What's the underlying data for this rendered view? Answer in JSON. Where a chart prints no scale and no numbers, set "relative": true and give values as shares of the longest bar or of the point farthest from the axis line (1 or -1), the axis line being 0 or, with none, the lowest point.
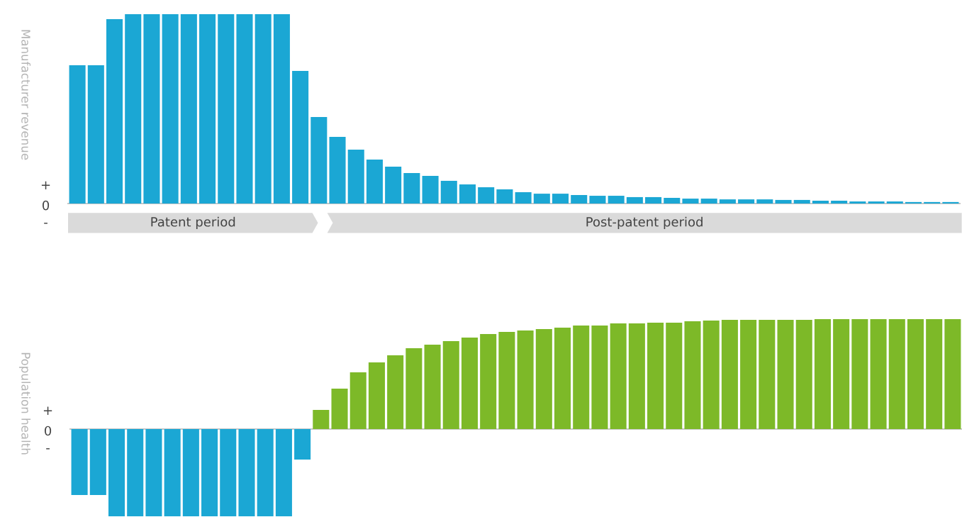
{
  "chart_data": [
    {
      "type": "bar",
      "relative": true,
      "ylabel": "Manufacturer revenue",
      "categories": [
        null,
        null,
        null,
        null,
        null,
        null,
        null,
        null,
        null,
        null,
        null,
        null,
        null,
        null,
        null,
        null,
        null,
        null,
        null,
        null,
        null,
        null,
        null,
        null,
        null,
        null,
        null,
        null,
        null,
        null,
        null,
        null,
        null,
        null,
        null,
        null,
        null,
        null,
        null,
        null,
        null,
        null,
        null,
        null,
        null,
        null,
        null,
        null
      ],
      "values": [
        0.73,
        0.73,
        0.974,
        1,
        1,
        1,
        1,
        1,
        1,
        1,
        1,
        1,
        0.7,
        0.457,
        0.352,
        0.285,
        0.232,
        0.195,
        0.161,
        0.146,
        0.12,
        0.101,
        0.086,
        0.075,
        0.06,
        0.052,
        0.052,
        0.045,
        0.041,
        0.041,
        0.034,
        0.034,
        0.03,
        0.026,
        0.026,
        0.022,
        0.022,
        0.022,
        0.019,
        0.019,
        0.015,
        0.015,
        0.011,
        0.011,
        0.011,
        0.008,
        0.008,
        0.008
      ],
      "color": "#1ba7d4",
      "annotations": [
        "+",
        "0",
        "-",
        "Patent period",
        "Post-patent period"
      ]
    },
    {
      "type": "bar",
      "relative": true,
      "ylabel": "Population health",
      "categories": [
        null,
        null,
        null,
        null,
        null,
        null,
        null,
        null,
        null,
        null,
        null,
        null,
        null,
        null,
        null,
        null,
        null,
        null,
        null,
        null,
        null,
        null,
        null,
        null,
        null,
        null,
        null,
        null,
        null,
        null,
        null,
        null,
        null,
        null,
        null,
        null,
        null,
        null,
        null,
        null,
        null,
        null,
        null,
        null,
        null,
        null,
        null,
        null
      ],
      "values": [
        -0.6,
        -0.6,
        -0.794,
        -0.794,
        -0.794,
        -0.794,
        -0.794,
        -0.794,
        -0.794,
        -0.794,
        -0.794,
        -0.794,
        -0.277,
        0.174,
        0.368,
        0.516,
        0.606,
        0.671,
        0.735,
        0.768,
        0.8,
        0.832,
        0.865,
        0.884,
        0.897,
        0.91,
        0.923,
        0.942,
        0.942,
        0.961,
        0.961,
        0.968,
        0.968,
        0.981,
        0.987,
        0.994,
        0.994,
        0.994,
        0.994,
        0.994,
        1,
        1,
        1,
        1,
        1,
        1,
        1,
        1
      ],
      "colors": [
        "#1ba7d4",
        "#1ba7d4",
        "#1ba7d4",
        "#1ba7d4",
        "#1ba7d4",
        "#1ba7d4",
        "#1ba7d4",
        "#1ba7d4",
        "#1ba7d4",
        "#1ba7d4",
        "#1ba7d4",
        "#1ba7d4",
        "#1ba7d4",
        "#7db928",
        "#7db928",
        "#7db928",
        "#7db928",
        "#7db928",
        "#7db928",
        "#7db928",
        "#7db928",
        "#7db928",
        "#7db928",
        "#7db928",
        "#7db928",
        "#7db928",
        "#7db928",
        "#7db928",
        "#7db928",
        "#7db928",
        "#7db928",
        "#7db928",
        "#7db928",
        "#7db928",
        "#7db928",
        "#7db928",
        "#7db928",
        "#7db928",
        "#7db928",
        "#7db928",
        "#7db928",
        "#7db928",
        "#7db928",
        "#7db928",
        "#7db928",
        "#7db928",
        "#7db928",
        "#7db928"
      ],
      "annotations": [
        "+",
        "0",
        "-"
      ]
    }
  ]
}
